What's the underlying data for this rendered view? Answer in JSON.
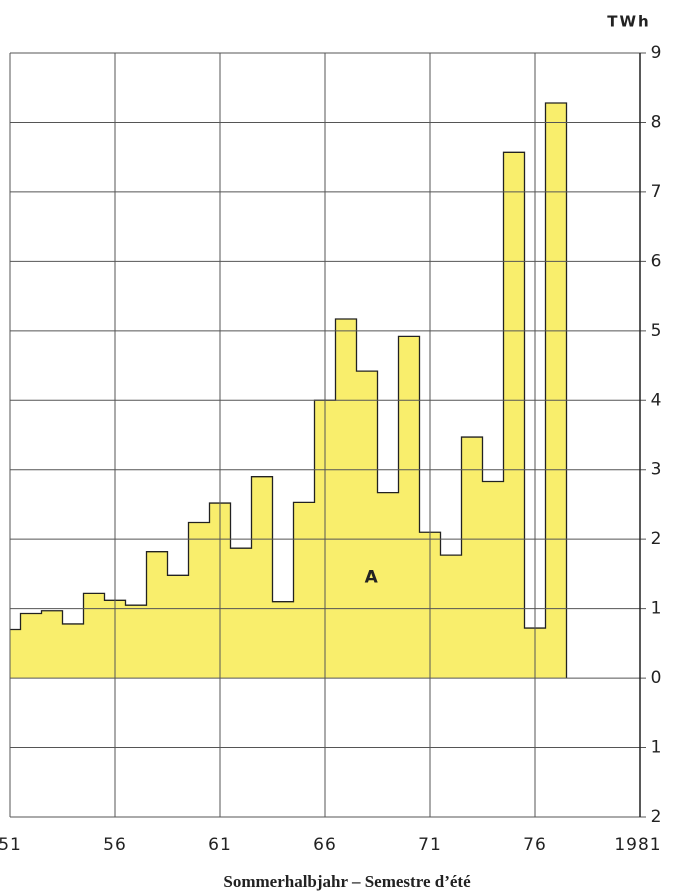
{
  "chart_data": {
    "type": "step-bar",
    "unit_label": "TWh",
    "x_label": "Sommerhalbjahr – Semestre d’été",
    "annotation": "A",
    "x": [
      1951,
      1952,
      1953,
      1954,
      1955,
      1956,
      1957,
      1958,
      1959,
      1960,
      1961,
      1962,
      1963,
      1964,
      1965,
      1966,
      1967,
      1968,
      1969,
      1970,
      1971,
      1972,
      1973,
      1974,
      1975,
      1976,
      1977
    ],
    "values": [
      0.7,
      0.93,
      0.97,
      0.78,
      1.22,
      1.12,
      1.05,
      1.82,
      1.48,
      2.24,
      2.52,
      1.87,
      2.9,
      1.1,
      2.53,
      4.0,
      5.17,
      4.42,
      2.67,
      4.92,
      2.1,
      1.77,
      3.47,
      2.83,
      7.57,
      0.72,
      8.28
    ],
    "color": "#f9ee6c",
    "xlim": [
      1951,
      1981
    ],
    "xticks": [
      {
        "value": 1951,
        "label": "51"
      },
      {
        "value": 1956,
        "label": "56"
      },
      {
        "value": 1961,
        "label": "61"
      },
      {
        "value": 1966,
        "label": "66"
      },
      {
        "value": 1971,
        "label": "71"
      },
      {
        "value": 1976,
        "label": "76"
      },
      1981
    ],
    "ylim": [
      -2,
      9
    ],
    "yticks": [
      {
        "value": -2,
        "label": "2"
      },
      {
        "value": -1,
        "label": "1"
      },
      0,
      1,
      2,
      3,
      4,
      5,
      6,
      7,
      8,
      9
    ],
    "grid": true
  }
}
